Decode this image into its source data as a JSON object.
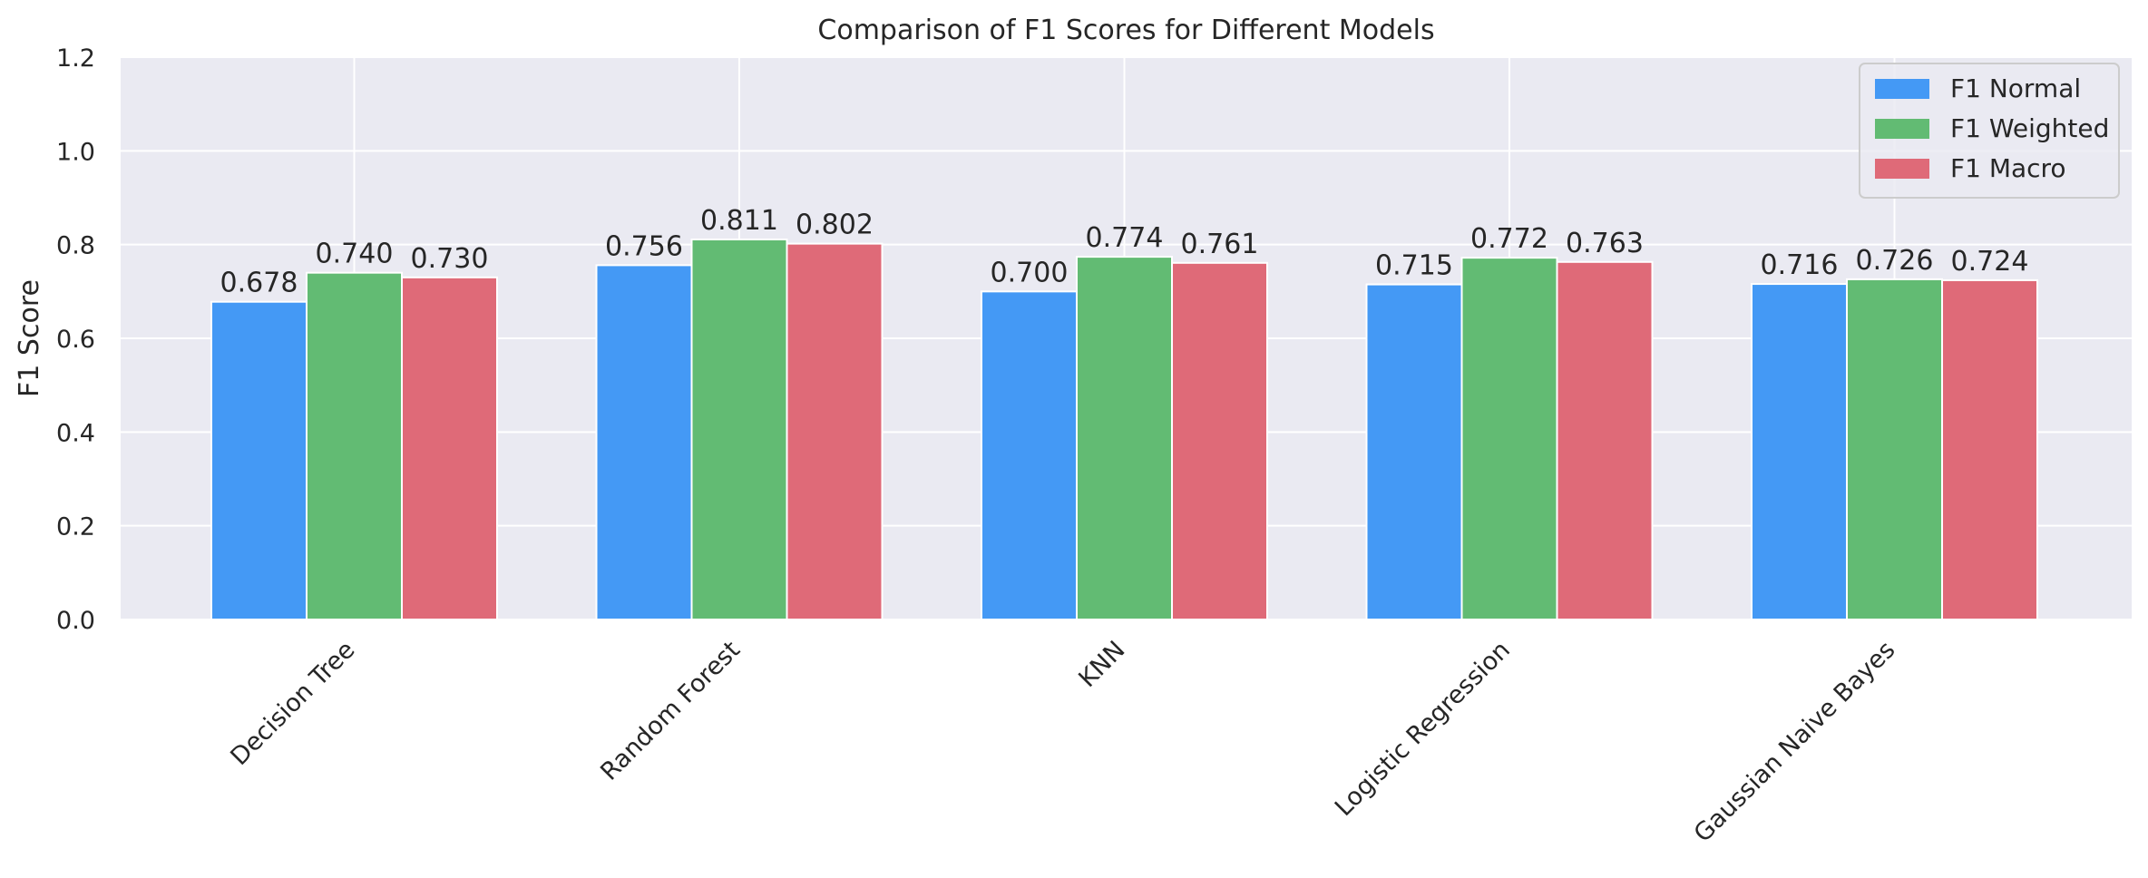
{
  "chart_data": {
    "type": "bar",
    "title": "Comparison of F1 Scores for Different Models",
    "xlabel": "",
    "ylabel": "F1 Score",
    "ylim": [
      0,
      1.2
    ],
    "yticks": [
      "0.0",
      "0.2",
      "0.4",
      "0.6",
      "0.8",
      "1.0",
      "1.2"
    ],
    "grid": true,
    "legend_position": "top-right",
    "categories": [
      "Decision Tree",
      "Random Forest",
      "KNN",
      "Logistic Regression",
      "Gaussian Naive Bayes"
    ],
    "series": [
      {
        "name": "F1 Normal",
        "color": "#4499f5",
        "values": [
          0.678,
          0.756,
          0.7,
          0.715,
          0.716
        ],
        "labels": [
          "0.678",
          "0.756",
          "0.700",
          "0.715",
          "0.716"
        ]
      },
      {
        "name": "F1 Weighted",
        "color": "#62bb73",
        "values": [
          0.74,
          0.811,
          0.774,
          0.772,
          0.726
        ],
        "labels": [
          "0.740",
          "0.811",
          "0.774",
          "0.772",
          "0.726"
        ]
      },
      {
        "name": "F1 Macro",
        "color": "#df6a78",
        "values": [
          0.73,
          0.802,
          0.761,
          0.763,
          0.724
        ],
        "labels": [
          "0.730",
          "0.802",
          "0.761",
          "0.763",
          "0.724"
        ]
      }
    ],
    "background_color": "#eaeaf2",
    "grid_color": "#ffffff"
  }
}
